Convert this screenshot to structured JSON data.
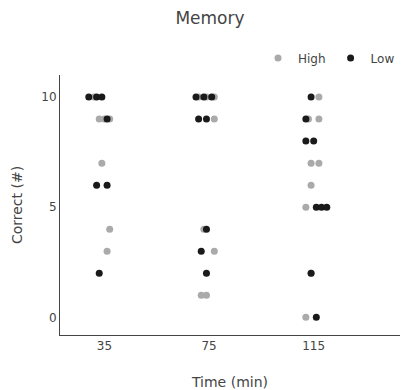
{
  "chart_data": {
    "type": "scatter",
    "title": "Memory",
    "x_label": "Time (min)",
    "y_label": "Correct (#)",
    "series": [
      {
        "name": "High",
        "color": "#aaaaaa",
        "marker": "circle",
        "x": [
          31,
          33,
          37,
          35,
          34,
          37,
          36,
          71,
          74,
          77,
          77,
          73,
          77,
          72,
          74,
          117,
          113,
          117,
          114,
          117,
          114,
          112,
          114,
          112
        ],
        "values": [
          10,
          9,
          9,
          9,
          7,
          4,
          3,
          10,
          10,
          10,
          9,
          4,
          3,
          1,
          1,
          10,
          9,
          9,
          7,
          7,
          6,
          5,
          2,
          0
        ]
      },
      {
        "name": "Low",
        "color": "#1a1a1a",
        "marker": "circle",
        "x": [
          29,
          32,
          34,
          36,
          32,
          36,
          33,
          70,
          73,
          76,
          71,
          74,
          74,
          72,
          74,
          114,
          112,
          112,
          115,
          116,
          118,
          120,
          114,
          116
        ],
        "values": [
          10,
          10,
          10,
          9,
          6,
          6,
          2,
          10,
          10,
          10,
          9,
          9,
          4,
          3,
          2,
          10,
          9,
          8,
          8,
          5,
          5,
          5,
          2,
          0
        ]
      }
    ],
    "xlim": [
      18,
      148
    ],
    "xticks": [
      35,
      75,
      115
    ],
    "ylim": [
      -0.8,
      11
    ],
    "yticks": [
      0,
      5,
      10
    ],
    "grid": false,
    "legend": "upper right"
  }
}
